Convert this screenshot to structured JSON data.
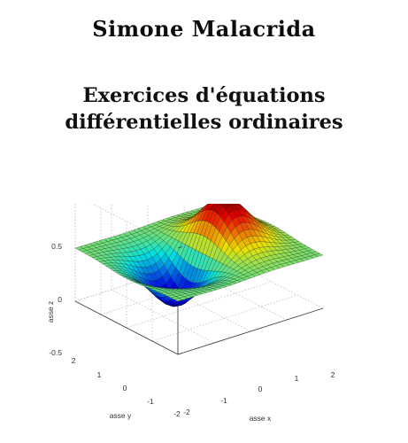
{
  "cover": {
    "author": "Simone Malacrida",
    "title_lines": [
      "Exercices d'équations",
      "différentielles ordinaires"
    ]
  },
  "plot": {
    "zlabel": "asse z",
    "ylabel": "asse y",
    "xlabel": "asse x",
    "z_ticks": [
      "0.5",
      "0",
      "-0.5"
    ],
    "y_ticks": [
      "2",
      "1",
      "0",
      "-1",
      "-2"
    ],
    "x_ticks": [
      "-2",
      "-1",
      "0",
      "1",
      "2"
    ],
    "xlim": [
      -2,
      2
    ],
    "ylim": [
      -2,
      2
    ],
    "zlim": [
      -0.5,
      0.5
    ],
    "colormap": "jet",
    "surface": "z = x·exp(-x² - y²)",
    "colors": {
      "low": "#1a1aa8",
      "mid": "#5fbf6a",
      "high": "#c4160b",
      "grid": "#b8b8b8"
    }
  }
}
